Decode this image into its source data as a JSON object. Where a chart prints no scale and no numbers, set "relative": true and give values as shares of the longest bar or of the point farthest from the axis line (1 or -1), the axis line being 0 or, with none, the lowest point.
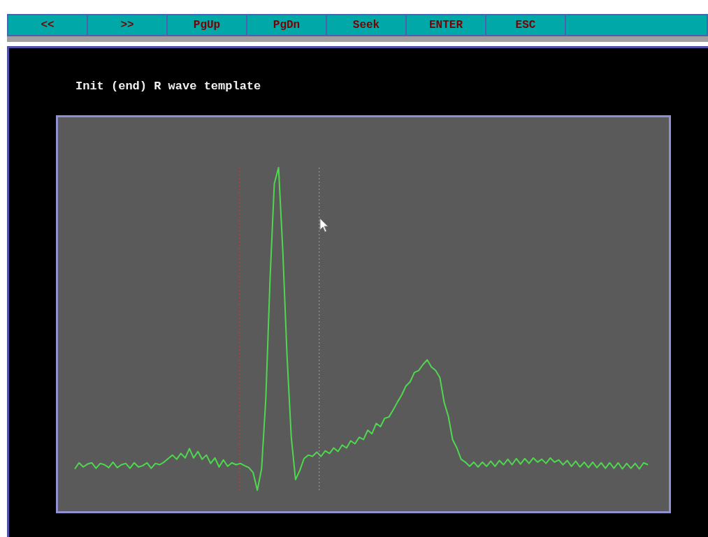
{
  "chart_data": {
    "type": "line",
    "title": "Init (end) R wave template",
    "annotations": [
      "<<",
      ">>",
      "PgUp",
      "PgDn",
      "Seek",
      "ENTER",
      "ESC"
    ],
    "relative": true,
    "marker": "none",
    "categories": [
      null,
      null,
      null,
      null,
      null,
      null,
      null,
      null,
      null,
      null,
      null,
      null,
      null,
      null,
      null,
      null,
      null,
      null,
      null,
      null,
      null,
      null,
      null,
      null,
      null,
      null,
      null,
      null,
      null,
      null,
      null,
      null,
      null,
      null,
      null,
      null,
      null,
      null,
      null,
      null,
      null,
      null,
      null,
      null,
      null,
      null,
      null,
      null,
      null,
      null,
      null,
      null,
      null,
      null,
      null,
      null,
      null,
      null,
      null,
      null,
      null,
      null,
      null,
      null,
      null,
      null,
      null,
      null,
      null,
      null,
      null,
      null,
      null,
      null,
      null,
      null,
      null,
      null,
      null,
      null,
      null,
      null,
      null,
      null,
      null,
      null,
      null,
      null,
      null,
      null,
      null,
      null,
      null,
      null,
      null,
      null,
      null,
      null,
      null,
      null,
      null,
      null,
      null,
      null,
      null,
      null,
      null,
      null,
      null,
      null,
      null,
      null,
      null,
      null,
      null,
      null,
      null,
      null,
      null,
      null,
      null,
      null,
      null,
      null,
      null,
      null,
      null,
      null,
      null,
      null,
      null,
      null,
      null,
      null,
      null,
      null
    ],
    "series": [
      {
        "color": "#4fd84f",
        "values": [
          0.066,
          0.085,
          0.072,
          0.081,
          0.085,
          0.068,
          0.083,
          0.079,
          0.07,
          0.087,
          0.07,
          0.079,
          0.083,
          0.068,
          0.085,
          0.072,
          0.076,
          0.085,
          0.068,
          0.083,
          0.079,
          0.087,
          0.098,
          0.109,
          0.096,
          0.114,
          0.1,
          0.129,
          0.1,
          0.12,
          0.096,
          0.109,
          0.083,
          0.1,
          0.072,
          0.094,
          0.074,
          0.085,
          0.079,
          0.083,
          0.076,
          0.07,
          0.055,
          0,
          0.066,
          0.284,
          0.655,
          0.95,
          1,
          0.742,
          0.415,
          0.164,
          0.033,
          0.061,
          0.098,
          0.109,
          0.105,
          0.118,
          0.105,
          0.122,
          0.114,
          0.131,
          0.12,
          0.14,
          0.131,
          0.153,
          0.144,
          0.164,
          0.157,
          0.186,
          0.175,
          0.207,
          0.197,
          0.223,
          0.227,
          0.249,
          0.273,
          0.295,
          0.323,
          0.336,
          0.365,
          0.371,
          0.389,
          0.404,
          0.382,
          0.371,
          0.349,
          0.273,
          0.229,
          0.157,
          0.131,
          0.096,
          0.087,
          0.074,
          0.087,
          0.072,
          0.087,
          0.074,
          0.09,
          0.074,
          0.092,
          0.079,
          0.096,
          0.079,
          0.098,
          0.081,
          0.098,
          0.083,
          0.1,
          0.087,
          0.096,
          0.083,
          0.1,
          0.087,
          0.094,
          0.079,
          0.092,
          0.074,
          0.09,
          0.072,
          0.087,
          0.07,
          0.087,
          0.07,
          0.085,
          0.068,
          0.085,
          0.068,
          0.085,
          0.066,
          0.083,
          0.068,
          0.083,
          0.066,
          0.085,
          0.079
        ]
      }
    ]
  }
}
